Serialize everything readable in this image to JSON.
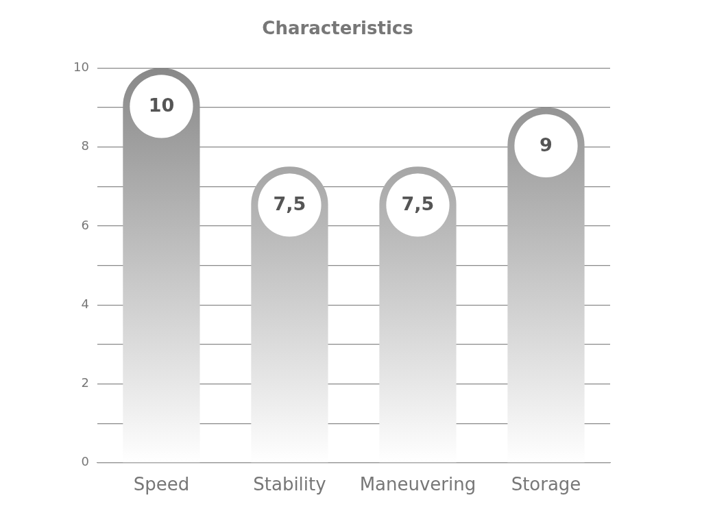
{
  "chart_data": {
    "type": "bar",
    "title": "Characteristics",
    "categories": [
      "Speed",
      "Stability",
      "Maneuvering",
      "Storage"
    ],
    "values": [
      10,
      7.5,
      7.5,
      9
    ],
    "value_labels": [
      "10",
      "7,5",
      "7,5",
      "9"
    ],
    "color": "#888888",
    "ylim": [
      0,
      10
    ],
    "yticks": [
      0,
      {
        "value": 1,
        "label": null
      },
      2,
      {
        "value": 3,
        "label": null
      },
      4,
      {
        "value": 5,
        "label": null
      },
      6,
      {
        "value": 7,
        "label": null
      },
      8,
      {
        "value": 9,
        "label": null
      },
      10
    ],
    "grid": true
  }
}
